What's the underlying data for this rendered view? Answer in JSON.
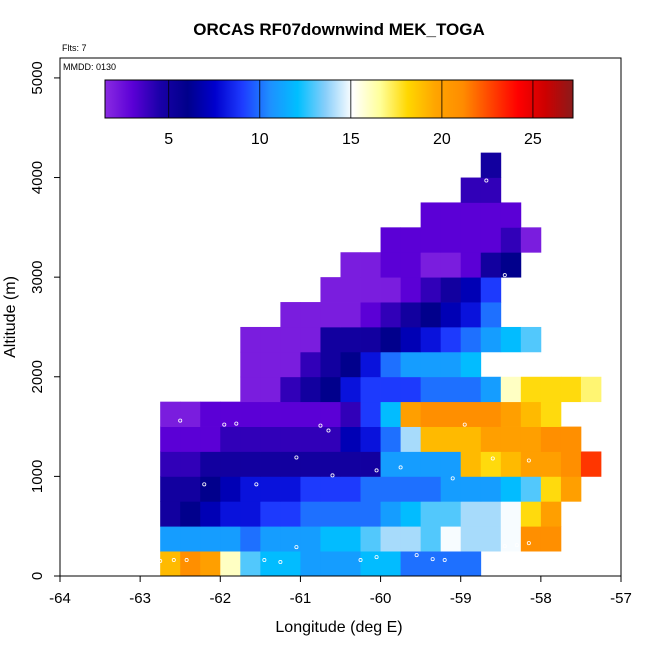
{
  "chart_data": {
    "type": "heatmap",
    "title": "ORCAS RF07downwind MEK_TOGA",
    "annotations": [
      "Flts: 7",
      "MMDD: 0130"
    ],
    "xlabel": "Longitude (deg E)",
    "ylabel": "Altitude (m)",
    "xlim": [
      -64,
      -57
    ],
    "ylim": [
      0,
      5200
    ],
    "xticks": [
      -64,
      -63,
      -62,
      -61,
      -60,
      -59,
      -58,
      -57
    ],
    "xtick_labels": [
      "-64",
      "-63",
      "-62",
      "-61",
      "-60",
      "-59",
      "-58",
      "-57"
    ],
    "yticks": [
      0,
      1000,
      2000,
      3000,
      4000,
      5000
    ],
    "ytick_labels": [
      "0",
      "1000",
      "2000",
      "3000",
      "4000",
      "5000"
    ],
    "colorbar": {
      "range": [
        1.5,
        27.2
      ],
      "ticks": [
        5,
        10,
        15,
        20,
        25
      ],
      "tick_labels": [
        "5",
        "10",
        "15",
        "20",
        "25"
      ],
      "stops": [
        "#8a2be2",
        "#5b00d6",
        "#1a00a8",
        "#00008b",
        "#0000cd",
        "#1e3cff",
        "#1e90ff",
        "#00bfff",
        "#87cefa",
        "#ffffff",
        "#ffff99",
        "#ffd700",
        "#ffa500",
        "#ff8c00",
        "#ff4500",
        "#ff0000",
        "#cd0000",
        "#8b1a1a"
      ]
    },
    "x_bin_width": 0.25,
    "y_bin_height": 250,
    "bins": [
      {
        "y": 0,
        "x0": -62.75,
        "values": [
          19,
          21,
          20,
          16,
          13,
          12,
          12,
          11,
          11,
          11,
          12,
          12,
          10,
          10,
          10,
          10
        ]
      },
      {
        "y": 250,
        "x0": -62.75,
        "values": [
          11,
          11,
          11,
          11,
          10,
          11,
          11,
          11,
          12,
          12,
          13,
          14,
          14,
          13,
          15,
          14,
          14,
          15,
          21,
          21
        ]
      },
      {
        "y": 500,
        "x0": -62.75,
        "values": [
          5,
          6,
          7,
          8,
          8,
          9,
          9,
          10,
          10,
          10,
          10,
          11,
          12,
          13,
          13,
          14,
          14,
          15,
          18,
          20
        ]
      },
      {
        "y": 750,
        "x0": -62.75,
        "values": [
          5,
          5,
          6,
          7,
          8,
          8,
          8,
          9,
          9,
          9,
          10,
          10,
          10,
          10,
          11,
          11,
          11,
          12,
          13,
          18,
          20
        ]
      },
      {
        "y": 1000,
        "x0": -62.75,
        "values": [
          4,
          4,
          5,
          5,
          5,
          5,
          5,
          5,
          5,
          5,
          5,
          11,
          11,
          11,
          11,
          19,
          18,
          19,
          20,
          20,
          21,
          23
        ]
      },
      {
        "y": 1250,
        "x0": -62.75,
        "values": [
          3,
          3,
          3,
          4,
          4,
          4,
          4,
          4,
          4,
          7,
          8,
          10,
          14,
          19,
          19,
          19,
          20,
          20,
          20,
          21,
          21
        ]
      },
      {
        "y": 1500,
        "x0": -62.75,
        "values": [
          2,
          2,
          3,
          3,
          3,
          3,
          3,
          3,
          3,
          4,
          9,
          12,
          20,
          21,
          21,
          21,
          21,
          20,
          19,
          18
        ]
      },
      {
        "y": 1750,
        "x0": -61.75,
        "values": [
          2,
          2,
          4,
          5,
          6,
          8,
          9,
          9,
          9,
          10,
          10,
          10,
          11,
          16,
          18,
          18,
          18,
          17
        ]
      },
      {
        "y": 2000,
        "x0": -61.75,
        "values": [
          2,
          2,
          2,
          4,
          5,
          6,
          8,
          10,
          11,
          11,
          11,
          12
        ]
      },
      {
        "y": 2250,
        "x0": -61.75,
        "values": [
          2,
          2,
          2,
          2,
          5,
          5,
          5,
          6,
          7,
          8,
          9,
          10,
          11,
          12,
          13
        ]
      },
      {
        "y": 2500,
        "x0": -61.25,
        "values": [
          2,
          2,
          2,
          2,
          3,
          4,
          5,
          6,
          7,
          8,
          10
        ]
      },
      {
        "y": 2750,
        "x0": -60.75,
        "values": [
          2,
          2,
          2,
          2,
          3,
          4,
          5,
          7,
          9
        ]
      },
      {
        "y": 3000,
        "x0": -60.5,
        "values": [
          2,
          2,
          3,
          3,
          2,
          2,
          3,
          5,
          6
        ]
      },
      {
        "y": 3250,
        "x0": -60,
        "values": [
          3,
          3,
          3,
          3,
          3,
          3,
          4,
          2
        ]
      },
      {
        "y": 3500,
        "x0": -59.5,
        "values": [
          3,
          3,
          3,
          3,
          3
        ]
      },
      {
        "y": 3750,
        "x0": -59,
        "values": [
          4,
          4
        ]
      },
      {
        "y": 4000,
        "x0": -58.75,
        "values": [
          5
        ]
      }
    ],
    "flight_points": [
      {
        "x": -62.75,
        "y": 150
      },
      {
        "x": -62.58,
        "y": 160
      },
      {
        "x": -62.42,
        "y": 160
      },
      {
        "x": -61.45,
        "y": 160
      },
      {
        "x": -61.25,
        "y": 140
      },
      {
        "x": -61.05,
        "y": 290
      },
      {
        "x": -60.25,
        "y": 160
      },
      {
        "x": -60.05,
        "y": 190
      },
      {
        "x": -59.55,
        "y": 210
      },
      {
        "x": -59.35,
        "y": 170
      },
      {
        "x": -59.2,
        "y": 160
      },
      {
        "x": -58.45,
        "y": 300
      },
      {
        "x": -58.3,
        "y": 310
      },
      {
        "x": -58.15,
        "y": 330
      },
      {
        "x": -62.85,
        "y": 640
      },
      {
        "x": -62.2,
        "y": 920
      },
      {
        "x": -61.55,
        "y": 920
      },
      {
        "x": -60.6,
        "y": 1010
      },
      {
        "x": -60.05,
        "y": 1060
      },
      {
        "x": -59.75,
        "y": 1090
      },
      {
        "x": -59.1,
        "y": 980
      },
      {
        "x": -58.6,
        "y": 1180
      },
      {
        "x": -58.15,
        "y": 1160
      },
      {
        "x": -62.5,
        "y": 1560
      },
      {
        "x": -61.95,
        "y": 1520
      },
      {
        "x": -61.8,
        "y": 1530
      },
      {
        "x": -60.75,
        "y": 1510
      },
      {
        "x": -60.65,
        "y": 1460
      },
      {
        "x": -58.95,
        "y": 1520
      },
      {
        "x": -61.05,
        "y": 1190
      },
      {
        "x": -58.25,
        "y": 2100
      },
      {
        "x": -58.45,
        "y": 3020
      },
      {
        "x": -58.68,
        "y": 3970
      }
    ]
  }
}
